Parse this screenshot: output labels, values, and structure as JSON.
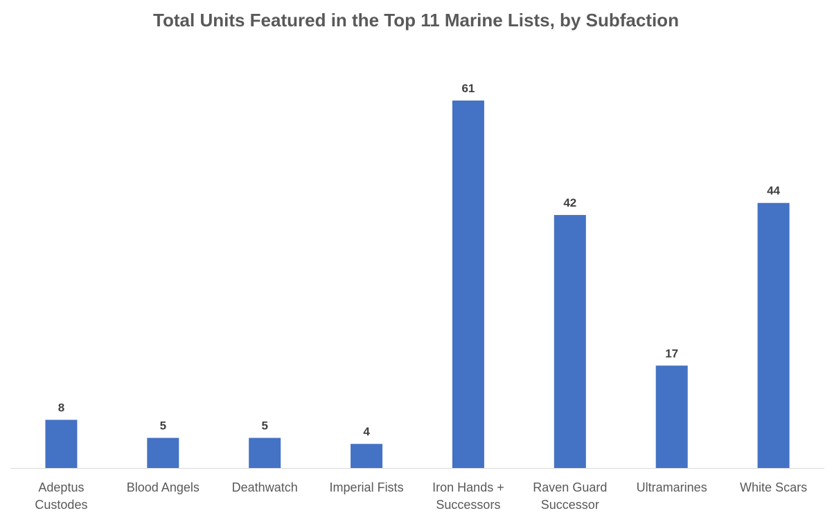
{
  "chart_data": {
    "type": "bar",
    "title": "Total Units Featured in the Top 11 Marine Lists, by Subfaction",
    "categories": [
      [
        "Adeptus",
        "Custodes"
      ],
      [
        "Blood Angels"
      ],
      [
        "Deathwatch"
      ],
      [
        "Imperial Fists"
      ],
      [
        "Iron Hands +",
        "Successors"
      ],
      [
        "Raven Guard",
        "Successor"
      ],
      [
        "Ultramarines"
      ],
      [
        "White Scars"
      ]
    ],
    "values": [
      8,
      5,
      5,
      4,
      61,
      42,
      17,
      44
    ],
    "xlabel": "",
    "ylabel": "",
    "ylim": [
      0,
      61
    ],
    "grid": false,
    "data_labels": true,
    "colors": {
      "bar": "#4472C4",
      "label": "#404040",
      "axis_text": "#595959",
      "axis_line": "#D9D9D9"
    }
  }
}
